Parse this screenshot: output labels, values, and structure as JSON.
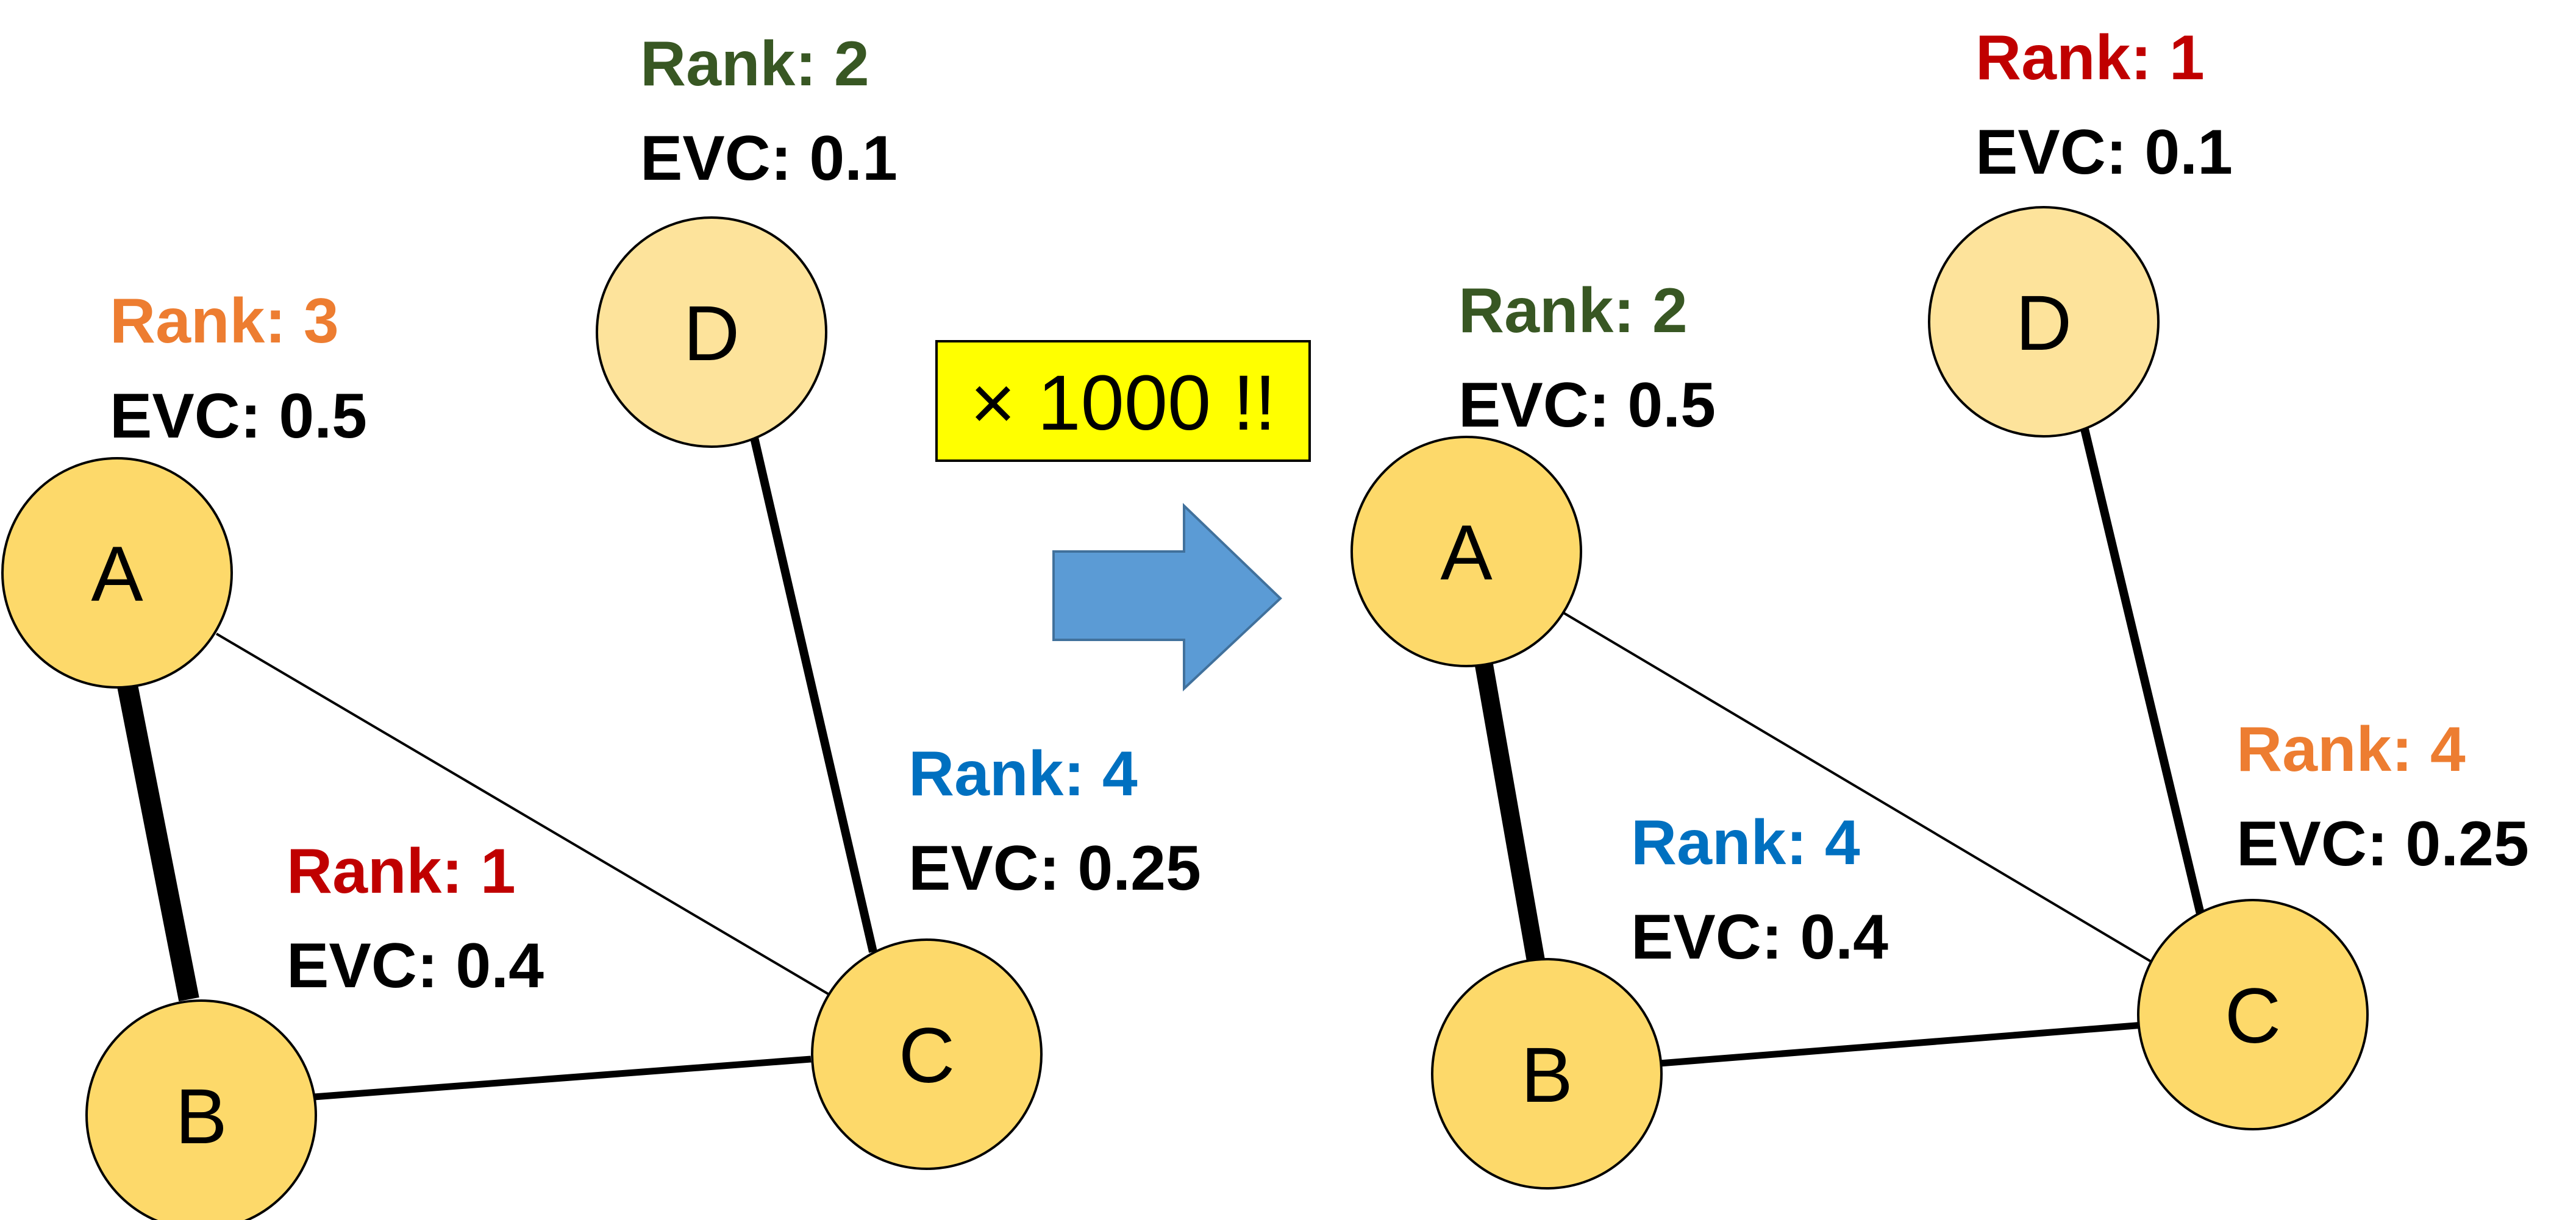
{
  "colors": {
    "node_fill": "#fdd96a",
    "node_fill_light": "#fde39b",
    "node_stroke": "#000000",
    "edge": "#000000",
    "arrow_fill": "#5b9bd5",
    "arrow_stroke": "#41719c",
    "badge_fill": "#ffff00",
    "rank_green": "#385723",
    "rank_orange": "#ed7d31",
    "rank_red": "#c00000",
    "rank_blue": "#0070c0"
  },
  "transform_badge": "× 1000 !!",
  "left_graph": {
    "nodes": {
      "A": {
        "label": "A",
        "rank": "Rank: 3",
        "evc": "EVC: 0.5",
        "rank_color": "rank_orange"
      },
      "B": {
        "label": "B",
        "rank": "Rank: 1",
        "evc": "EVC: 0.4",
        "rank_color": "rank_red"
      },
      "C": {
        "label": "C",
        "rank": "Rank: 4",
        "evc": "EVC: 0.25",
        "rank_color": "rank_blue"
      },
      "D": {
        "label": "D",
        "rank": "Rank: 2",
        "evc": "EVC: 0.1",
        "rank_color": "rank_green"
      }
    }
  },
  "right_graph": {
    "nodes": {
      "A": {
        "label": "A",
        "rank": "Rank: 2",
        "evc": "EVC: 0.5",
        "rank_color": "rank_green"
      },
      "B": {
        "label": "B",
        "rank": "Rank: 4",
        "evc": "EVC: 0.4",
        "rank_color": "rank_blue"
      },
      "C": {
        "label": "C",
        "rank": "Rank: 4",
        "evc": "EVC: 0.25",
        "rank_color": "rank_orange"
      },
      "D": {
        "label": "D",
        "rank": "Rank: 1",
        "evc": "EVC: 0.1",
        "rank_color": "rank_red"
      }
    }
  }
}
